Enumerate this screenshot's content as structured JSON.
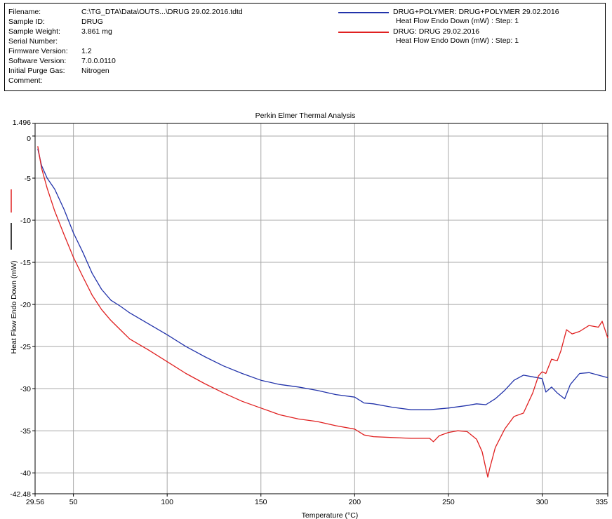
{
  "header": {
    "meta": [
      {
        "label": "Filename:",
        "value": "C:\\TG_DTA\\Data\\OUTS...\\DRUG 29.02.2016.tdtd"
      },
      {
        "label": "Sample ID:",
        "value": "DRUG"
      },
      {
        "label": "Sample Weight:",
        "value": "3.861 mg"
      },
      {
        "label": "Serial Number:",
        "value": ""
      },
      {
        "label": "Firmware Version:",
        "value": "1.2"
      },
      {
        "label": "Software Version:",
        "value": "7.0.0.0110"
      },
      {
        "label": "Initial Purge Gas:",
        "value": "Nitrogen"
      },
      {
        "label": "Comment:",
        "value": ""
      }
    ],
    "legend": [
      {
        "name": "DRUG+POLYMER: DRUG+POLYMER 29.02.2016",
        "sub": "Heat Flow Endo Down (mW) : Step: 1",
        "color": "#2233aa"
      },
      {
        "name": "DRUG: DRUG 29.02.2016",
        "sub": "Heat Flow Endo Down (mW) : Step: 1",
        "color": "#e02020"
      }
    ]
  },
  "chart_data": {
    "type": "line",
    "title": "Perkin Elmer Thermal Analysis",
    "xlabel": "Temperature (°C)",
    "ylabel": "Heat Flow Endo Down (mW)",
    "xlim": [
      29.56,
      335
    ],
    "ylim": [
      -42.48,
      1.496
    ],
    "xticks": [
      29.56,
      50,
      100,
      150,
      200,
      250,
      300,
      335
    ],
    "xtick_labels": [
      "29.56",
      "50",
      "100",
      "150",
      "200",
      "250",
      "300",
      "335"
    ],
    "yticks": [
      1.496,
      0,
      -5,
      -10,
      -15,
      -20,
      -25,
      -30,
      -35,
      -40,
      -42.48
    ],
    "ytick_labels": [
      "1.496",
      "0",
      "-5",
      "-10",
      "-15",
      "-20",
      "-25",
      "-30",
      "-35",
      "-40",
      "-42.48"
    ],
    "grid": true,
    "series": [
      {
        "name": "DRUG+POLYMER: DRUG+POLYMER 29.02.2016",
        "color": "#2233aa",
        "x": [
          31,
          33,
          36,
          40,
          45,
          50,
          55,
          60,
          65,
          70,
          75,
          80,
          90,
          100,
          110,
          120,
          130,
          140,
          150,
          160,
          170,
          180,
          190,
          200,
          205,
          210,
          220,
          230,
          240,
          250,
          260,
          265,
          270,
          275,
          280,
          285,
          290,
          295,
          300,
          302,
          305,
          308,
          312,
          315,
          320,
          325,
          330,
          335
        ],
        "y": [
          -1.5,
          -3.5,
          -5.0,
          -6.3,
          -8.7,
          -11.5,
          -13.8,
          -16.3,
          -18.2,
          -19.5,
          -20.2,
          -21.0,
          -22.3,
          -23.6,
          -25.0,
          -26.2,
          -27.3,
          -28.2,
          -29.0,
          -29.5,
          -29.8,
          -30.2,
          -30.7,
          -31.0,
          -31.7,
          -31.8,
          -32.2,
          -32.5,
          -32.5,
          -32.3,
          -32.0,
          -31.8,
          -31.9,
          -31.2,
          -30.2,
          -29.0,
          -28.4,
          -28.6,
          -28.8,
          -30.4,
          -29.8,
          -30.5,
          -31.2,
          -29.5,
          -28.2,
          -28.1,
          -28.4,
          -28.7
        ]
      },
      {
        "name": "DRUG: DRUG 29.02.2016",
        "color": "#e02020",
        "x": [
          31,
          33,
          36,
          40,
          45,
          50,
          55,
          60,
          65,
          70,
          75,
          80,
          90,
          100,
          110,
          120,
          130,
          140,
          150,
          160,
          170,
          180,
          190,
          200,
          205,
          210,
          220,
          230,
          240,
          242,
          245,
          250,
          255,
          260,
          265,
          268,
          270,
          271,
          272,
          275,
          280,
          285,
          290,
          295,
          298,
          300,
          302,
          305,
          308,
          310,
          313,
          316,
          320,
          325,
          330,
          332,
          335
        ],
        "y": [
          -1.2,
          -3.8,
          -6.2,
          -8.9,
          -11.7,
          -14.4,
          -16.7,
          -18.9,
          -20.6,
          -21.9,
          -23.0,
          -24.1,
          -25.4,
          -26.8,
          -28.2,
          -29.4,
          -30.5,
          -31.5,
          -32.3,
          -33.1,
          -33.6,
          -33.9,
          -34.4,
          -34.8,
          -35.5,
          -35.7,
          -35.8,
          -35.9,
          -35.9,
          -36.3,
          -35.6,
          -35.2,
          -35.0,
          -35.1,
          -36.0,
          -37.5,
          -39.5,
          -40.5,
          -39.5,
          -37.0,
          -34.8,
          -33.3,
          -32.9,
          -30.5,
          -28.5,
          -28.0,
          -28.2,
          -26.5,
          -26.7,
          -25.5,
          -23.0,
          -23.5,
          -23.2,
          -22.5,
          -22.7,
          -22.0,
          -24.0
        ]
      }
    ]
  }
}
